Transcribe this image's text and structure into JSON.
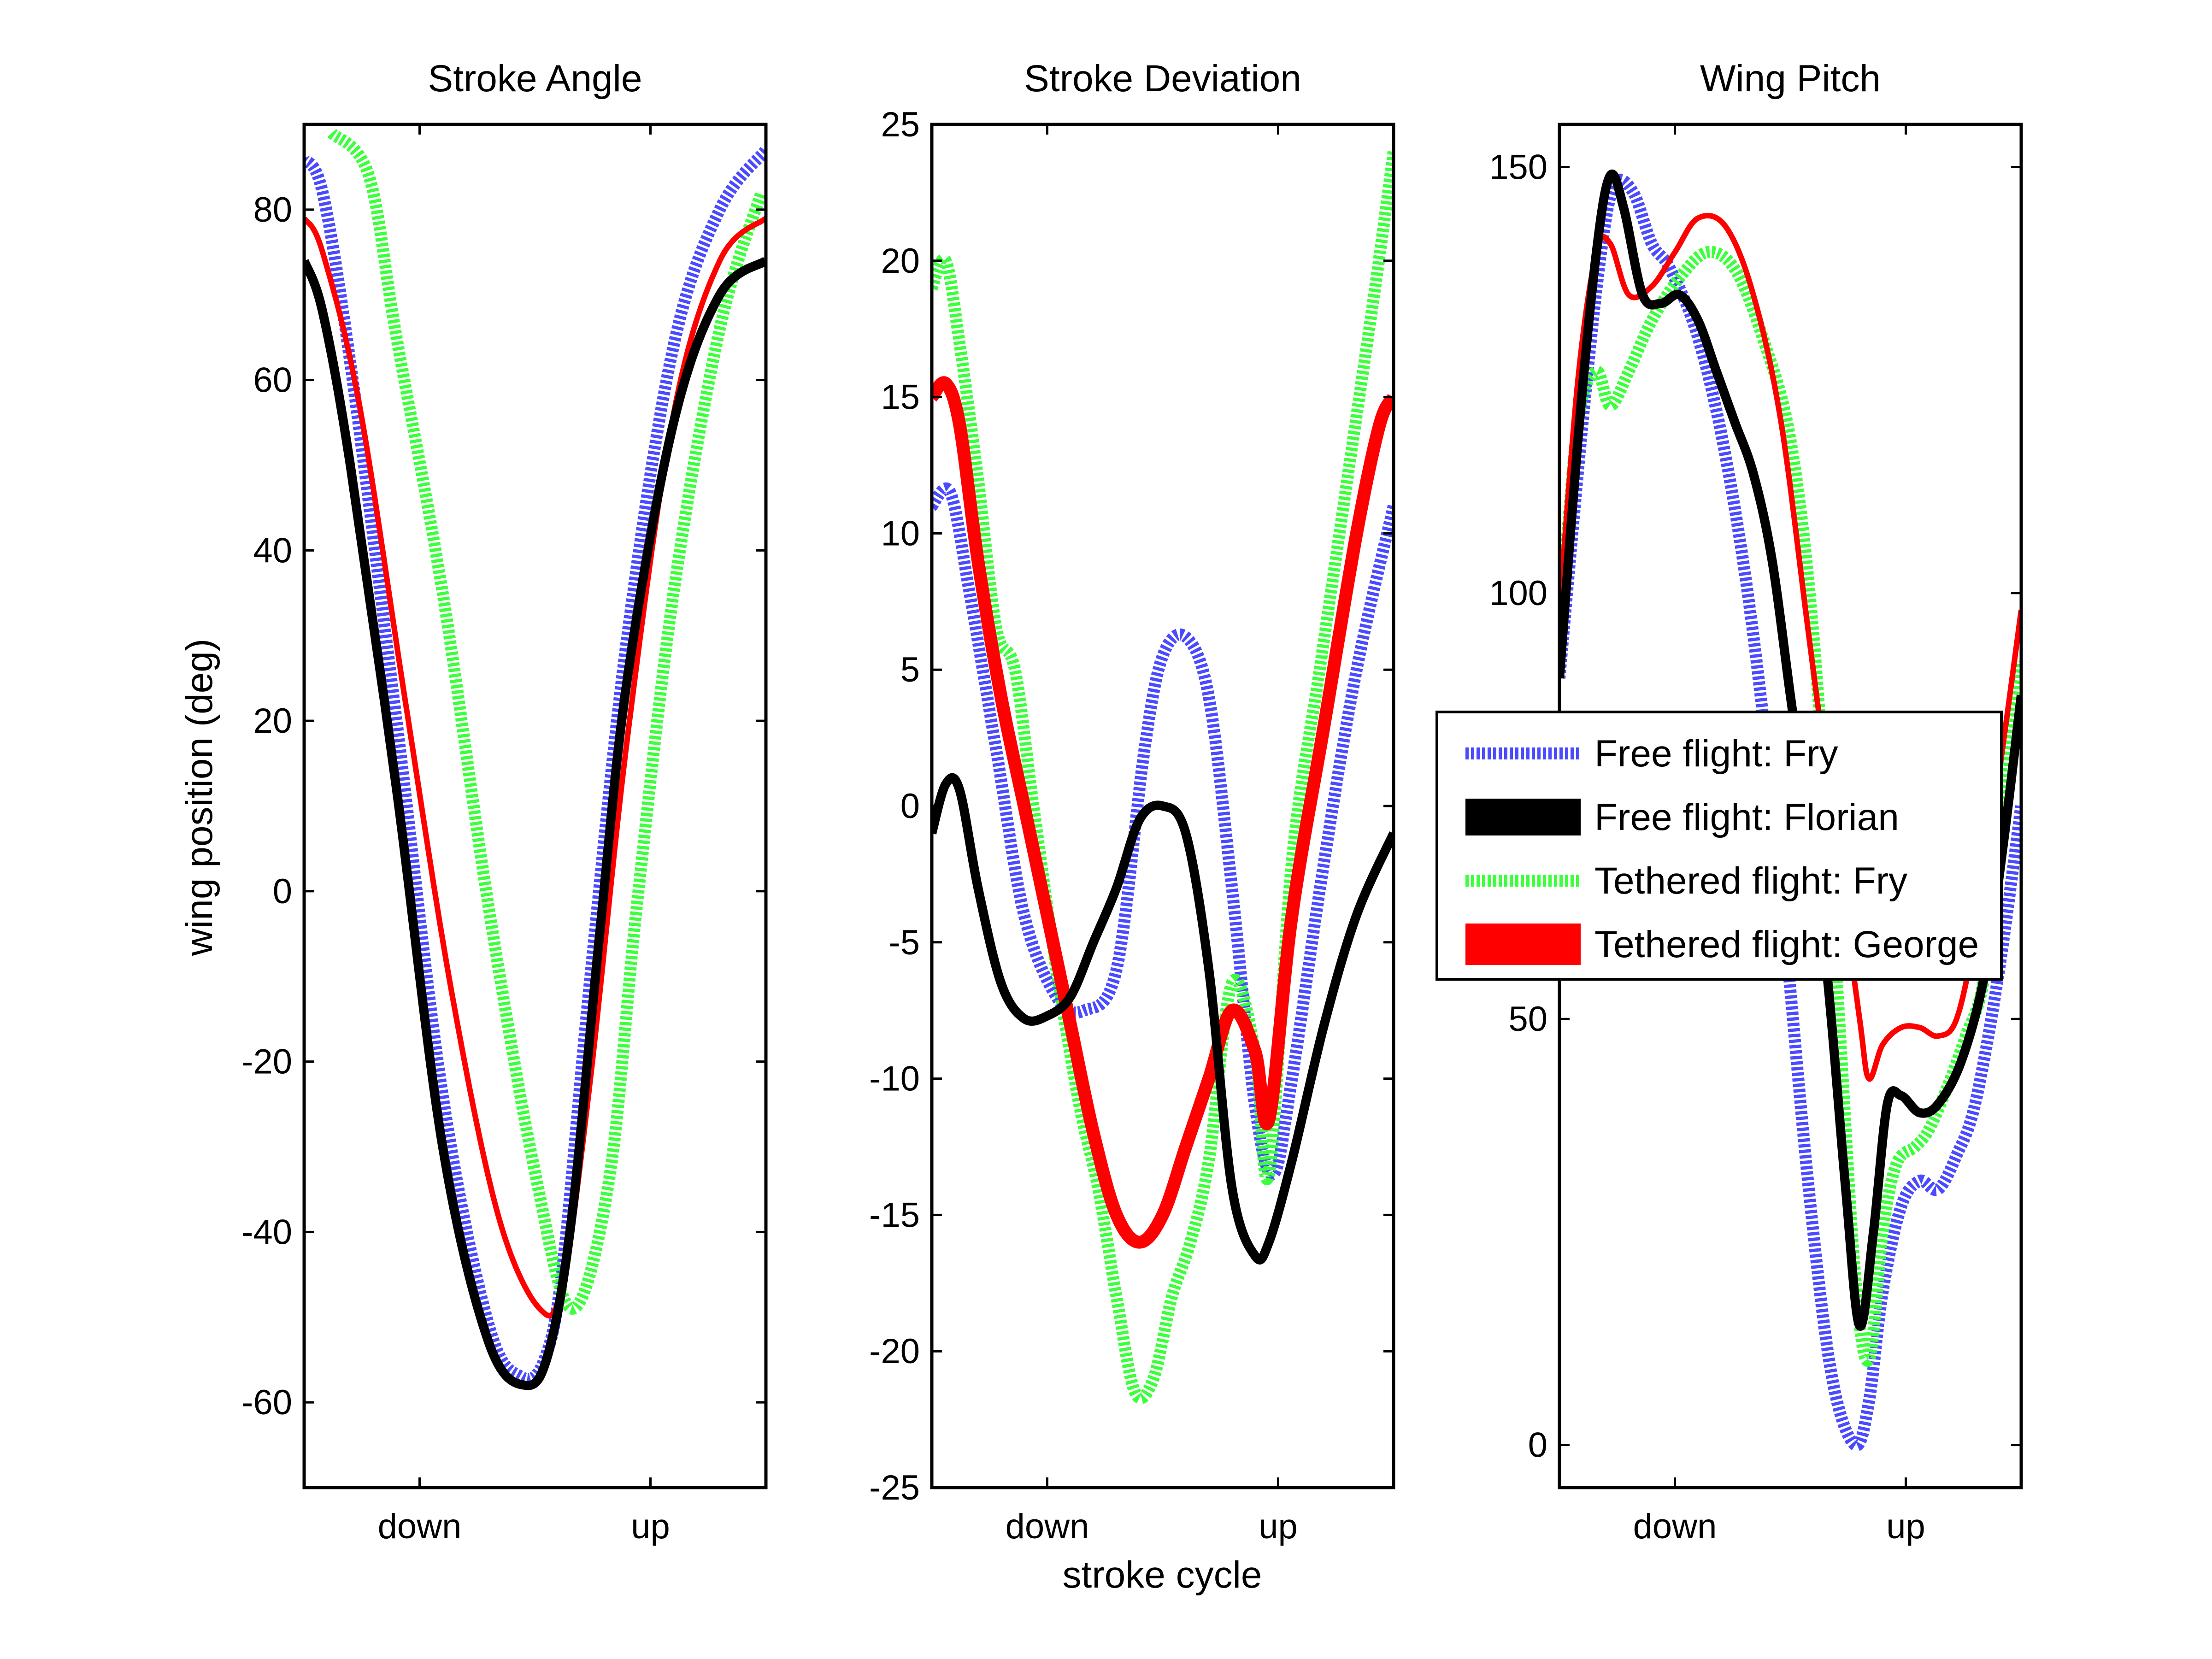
{
  "figure": {
    "ylabel": "wing position (deg)",
    "xlabel": "stroke cycle"
  },
  "legend": [
    {
      "label": "Free flight: Fry",
      "color": "#4a4aff",
      "style": "dotted"
    },
    {
      "label": "Free flight: Florian",
      "color": "#000000",
      "style": "solid"
    },
    {
      "label": "Tethered flight: Fry",
      "color": "#3cff3c",
      "style": "dotted"
    },
    {
      "label": "Tethered flight: George",
      "color": "#ff0000",
      "style": "band"
    }
  ],
  "chart_data": [
    {
      "type": "line",
      "title": "Stroke Angle",
      "xticks": [
        "down",
        "up"
      ],
      "ylim": [
        -70,
        90
      ],
      "yticks": [
        80,
        60,
        40,
        20,
        0,
        -20,
        -40,
        -60
      ],
      "series": [
        {
          "name": "Free flight: Fry",
          "x": [
            0,
            0.04,
            0.1,
            0.2,
            0.3,
            0.4,
            0.47,
            0.52,
            0.56,
            0.62,
            0.7,
            0.8,
            0.9,
            1.0
          ],
          "y": [
            86,
            82,
            62,
            20,
            -24,
            -51,
            -57,
            -55,
            -44,
            -10,
            30,
            64,
            80,
            87
          ]
        },
        {
          "name": "Free flight: Florian",
          "x": [
            0,
            0.04,
            0.1,
            0.2,
            0.3,
            0.4,
            0.48,
            0.53,
            0.58,
            0.64,
            0.7,
            0.8,
            0.9,
            1.0
          ],
          "y": [
            74,
            68,
            50,
            12,
            -30,
            -53,
            -58,
            -54,
            -38,
            -5,
            25,
            55,
            70,
            74
          ]
        },
        {
          "name": "Tethered flight: Fry",
          "x": [
            0.06,
            0.14,
            0.2,
            0.3,
            0.4,
            0.5,
            0.58,
            0.66,
            0.72,
            0.8,
            0.9,
            0.99
          ],
          "y": [
            89,
            84,
            65,
            35,
            -2,
            -33,
            -49,
            -34,
            -2,
            35,
            66,
            82
          ]
        },
        {
          "name": "Tethered flight: George",
          "x": [
            0,
            0.04,
            0.12,
            0.22,
            0.32,
            0.42,
            0.51,
            0.56,
            0.62,
            0.7,
            0.8,
            0.9,
            1.0
          ],
          "y": [
            79,
            75,
            57,
            22,
            -12,
            -38,
            -49,
            -46,
            -22,
            18,
            56,
            74,
            79
          ]
        }
      ]
    },
    {
      "type": "line",
      "title": "Stroke Deviation",
      "xticks": [
        "down",
        "up"
      ],
      "ylim": [
        -25,
        25
      ],
      "yticks": [
        25,
        20,
        15,
        10,
        5,
        0,
        -5,
        -10,
        -15,
        -20,
        -25
      ],
      "series": [
        {
          "name": "Free flight: Fry",
          "x": [
            0,
            0.04,
            0.08,
            0.14,
            0.2,
            0.27,
            0.33,
            0.4,
            0.46,
            0.5,
            0.55,
            0.6,
            0.65,
            0.7,
            0.74,
            0.78,
            0.85,
            0.92,
            1.0
          ],
          "y": [
            11,
            11.5,
            8,
            2,
            -4,
            -7,
            -7.5,
            -6,
            2,
            5.5,
            6.2,
            4,
            -3,
            -11,
            -13.5,
            -10,
            -2,
            5,
            11
          ]
        },
        {
          "name": "Free flight: Florian",
          "x": [
            0,
            0.03,
            0.06,
            0.1,
            0.15,
            0.2,
            0.25,
            0.3,
            0.35,
            0.4,
            0.45,
            0.5,
            0.55,
            0.6,
            0.65,
            0.7,
            0.73,
            0.78,
            0.85,
            0.92,
            1.0
          ],
          "y": [
            -1,
            0.8,
            0.6,
            -3,
            -6.5,
            -7.8,
            -7.7,
            -7,
            -5,
            -3,
            -0.5,
            0,
            -1,
            -6,
            -14,
            -16.5,
            -16,
            -13,
            -8,
            -4,
            -1
          ]
        },
        {
          "name": "Tethered flight: Fry",
          "x": [
            0,
            0.03,
            0.06,
            0.1,
            0.14,
            0.18,
            0.22,
            0.27,
            0.32,
            0.36,
            0.4,
            0.44,
            0.48,
            0.52,
            0.56,
            0.6,
            0.65,
            0.7,
            0.73,
            0.78,
            0.84,
            0.9,
            0.96,
            1.0
          ],
          "y": [
            19,
            20,
            17,
            12,
            6.5,
            5,
            0,
            -6,
            -11,
            -14,
            -18,
            -21.5,
            -21,
            -18,
            -16,
            -13,
            -6.5,
            -9,
            -13.5,
            -2,
            5,
            12,
            19,
            24
          ]
        },
        {
          "name": "Tethered flight: George",
          "x": [
            0,
            0.03,
            0.06,
            0.1,
            0.15,
            0.2,
            0.25,
            0.3,
            0.35,
            0.4,
            0.45,
            0.5,
            0.55,
            0.6,
            0.65,
            0.7,
            0.73,
            0.78,
            0.85,
            0.92,
            0.97,
            1.0
          ],
          "y": [
            15,
            15.5,
            14,
            9,
            4,
            0,
            -4,
            -8,
            -12,
            -15,
            -16,
            -15,
            -12.5,
            -10,
            -7.5,
            -9,
            -11.5,
            -4,
            3,
            10,
            14,
            15
          ]
        }
      ]
    },
    {
      "type": "line",
      "title": "Wing Pitch",
      "xticks": [
        "down",
        "up"
      ],
      "ylim": [
        -5,
        155
      ],
      "yticks": [
        150,
        100,
        50,
        0
      ],
      "series": [
        {
          "name": "Free flight: Fry",
          "x": [
            0.0,
            0.05,
            0.09,
            0.12,
            0.16,
            0.2,
            0.24,
            0.3,
            0.36,
            0.42,
            0.48,
            0.54,
            0.59,
            0.64,
            0.67,
            0.7,
            0.74,
            0.78,
            0.82,
            0.86,
            0.9,
            0.95,
            1.0
          ],
          "y": [
            90,
            120,
            140,
            148,
            147,
            141,
            138,
            130,
            116,
            95,
            65,
            30,
            8,
            0,
            5,
            18,
            28,
            31,
            30,
            34,
            40,
            55,
            75
          ]
        },
        {
          "name": "Free flight: Florian",
          "x": [
            0.0,
            0.04,
            0.08,
            0.11,
            0.14,
            0.18,
            0.22,
            0.26,
            0.3,
            0.34,
            0.38,
            0.42,
            0.46,
            0.5,
            0.54,
            0.58,
            0.62,
            0.65,
            0.68,
            0.71,
            0.74,
            0.78,
            0.82,
            0.87,
            0.92,
            0.96,
            1.0
          ],
          "y": [
            90,
            118,
            140,
            149,
            145,
            135,
            134,
            135,
            132,
            126,
            120,
            114,
            104,
            88,
            72,
            55,
            30,
            14,
            25,
            40,
            41,
            39,
            40,
            45,
            55,
            70,
            88
          ]
        },
        {
          "name": "Tethered flight: Fry",
          "x": [
            0.0,
            0.04,
            0.08,
            0.11,
            0.15,
            0.2,
            0.26,
            0.32,
            0.38,
            0.44,
            0.5,
            0.55,
            0.6,
            0.64,
            0.67,
            0.7,
            0.73,
            0.77,
            0.8,
            0.84,
            0.88,
            0.92,
            0.96,
            1.0
          ],
          "y": [
            95,
            120,
            126,
            122,
            126,
            132,
            137,
            140,
            138,
            130,
            118,
            95,
            55,
            20,
            10,
            25,
            33,
            35,
            37,
            42,
            48,
            55,
            75,
            92
          ]
        },
        {
          "name": "Tethered flight: George",
          "x": [
            0.0,
            0.04,
            0.08,
            0.11,
            0.15,
            0.2,
            0.25,
            0.3,
            0.36,
            0.42,
            0.48,
            0.54,
            0.6,
            0.65,
            0.67,
            0.7,
            0.74,
            0.78,
            0.82,
            0.86,
            0.9,
            0.95,
            1.0
          ],
          "y": [
            98,
            125,
            140,
            141,
            135,
            136,
            140,
            144,
            143,
            135,
            120,
            95,
            70,
            50,
            43,
            47,
            49,
            49,
            48,
            50,
            60,
            78,
            98
          ]
        }
      ]
    }
  ]
}
